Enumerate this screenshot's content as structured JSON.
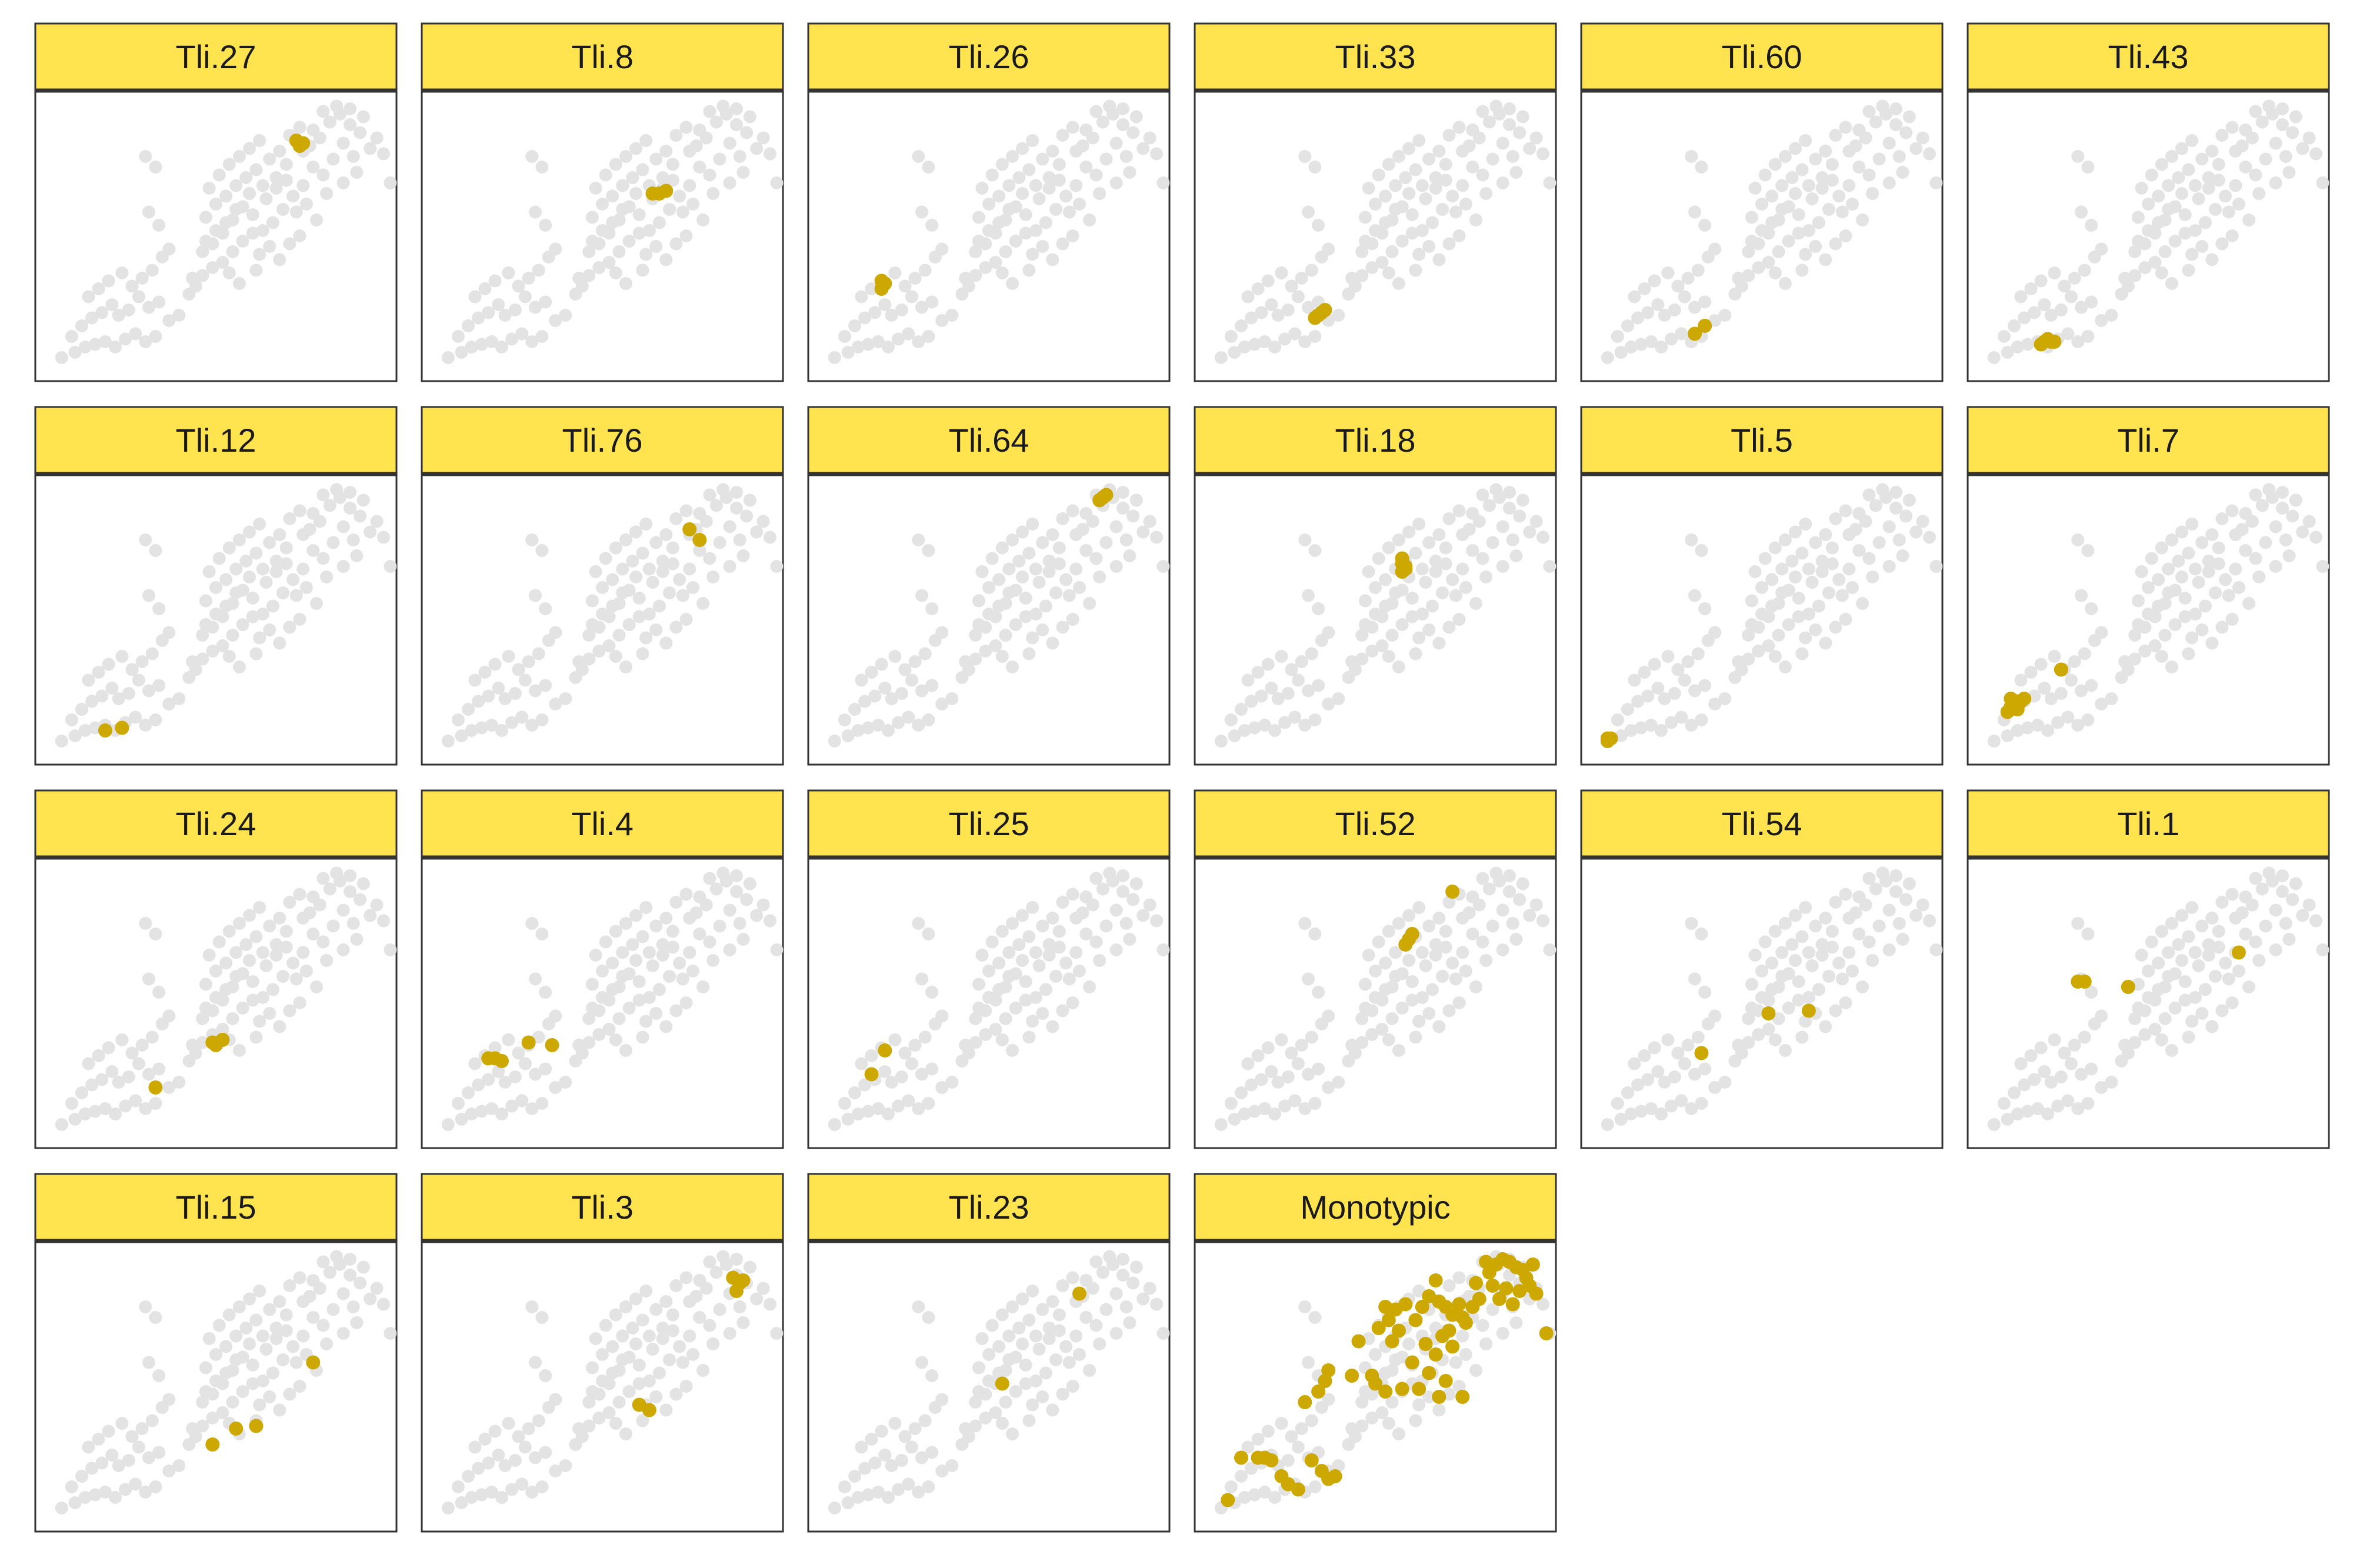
{
  "colors": {
    "background_point": "#E3E3E3",
    "highlight_point": "#CCA800",
    "strip_fill": "#FFE44F",
    "strip_border": "#333333",
    "panel_background": "#ffffff"
  },
  "chart_data": {
    "type": "scatter",
    "layout": "faceted-grid",
    "grid": false,
    "legend": "none",
    "xlim": [
      0,
      10
    ],
    "ylim": [
      0,
      10
    ],
    "background_points": [
      [
        0.4,
        0.4
      ],
      [
        0.8,
        0.6
      ],
      [
        1.1,
        0.8
      ],
      [
        1.4,
        0.9
      ],
      [
        1.7,
        1.0
      ],
      [
        2.0,
        0.8
      ],
      [
        2.3,
        1.1
      ],
      [
        2.6,
        1.3
      ],
      [
        2.9,
        1.0
      ],
      [
        3.2,
        1.2
      ],
      [
        0.7,
        1.2
      ],
      [
        1.0,
        1.6
      ],
      [
        1.3,
        1.9
      ],
      [
        1.6,
        2.1
      ],
      [
        1.9,
        2.4
      ],
      [
        2.1,
        2.0
      ],
      [
        2.4,
        2.2
      ],
      [
        2.7,
        2.7
      ],
      [
        3.0,
        2.3
      ],
      [
        3.3,
        2.5
      ],
      [
        3.6,
        1.8
      ],
      [
        3.9,
        2.0
      ],
      [
        4.2,
        2.8
      ],
      [
        4.4,
        3.1
      ],
      [
        1.2,
        2.7
      ],
      [
        1.5,
        3.0
      ],
      [
        1.8,
        3.3
      ],
      [
        2.2,
        3.6
      ],
      [
        2.5,
        3.1
      ],
      [
        2.8,
        3.4
      ],
      [
        3.1,
        3.7
      ],
      [
        3.4,
        4.2
      ],
      [
        3.6,
        4.5
      ],
      [
        3.3,
        5.4
      ],
      [
        3.0,
        5.9
      ],
      [
        2.9,
        8.0
      ],
      [
        3.2,
        7.6
      ],
      [
        4.6,
        3.5
      ],
      [
        4.9,
        3.8
      ],
      [
        5.2,
        4.0
      ],
      [
        5.5,
        4.4
      ],
      [
        5.8,
        4.8
      ],
      [
        6.1,
        5.1
      ],
      [
        6.3,
        4.3
      ],
      [
        6.6,
        4.6
      ],
      [
        4.7,
        5.7
      ],
      [
        5.0,
        6.2
      ],
      [
        5.3,
        6.5
      ],
      [
        5.6,
        6.9
      ],
      [
        5.9,
        7.2
      ],
      [
        6.2,
        7.5
      ],
      [
        6.5,
        6.4
      ],
      [
        6.8,
        6.8
      ],
      [
        7.1,
        7.1
      ],
      [
        7.4,
        5.9
      ],
      [
        7.7,
        6.2
      ],
      [
        8.0,
        5.6
      ],
      [
        4.8,
        6.8
      ],
      [
        5.1,
        7.3
      ],
      [
        5.4,
        7.7
      ],
      [
        5.7,
        8.0
      ],
      [
        6.0,
        8.3
      ],
      [
        6.3,
        8.6
      ],
      [
        6.6,
        7.9
      ],
      [
        6.9,
        8.2
      ],
      [
        7.2,
        8.8
      ],
      [
        7.5,
        9.1
      ],
      [
        7.8,
        8.4
      ],
      [
        8.1,
        8.7
      ],
      [
        8.4,
        9.3
      ],
      [
        8.7,
        9.6
      ],
      [
        9.0,
        9.2
      ],
      [
        9.3,
        8.9
      ],
      [
        9.1,
        8.0
      ],
      [
        8.8,
        8.5
      ],
      [
        8.5,
        7.9
      ],
      [
        8.2,
        7.3
      ],
      [
        7.9,
        7.6
      ],
      [
        7.6,
        6.9
      ],
      [
        7.3,
        6.5
      ],
      [
        7.0,
        6.0
      ],
      [
        6.7,
        5.5
      ],
      [
        6.4,
        5.2
      ],
      [
        6.1,
        5.8
      ],
      [
        5.8,
        6.1
      ],
      [
        5.5,
        5.6
      ],
      [
        5.2,
        5.1
      ],
      [
        4.9,
        4.7
      ],
      [
        4.6,
        4.4
      ],
      [
        8.2,
        9.7
      ],
      [
        8.6,
        9.9
      ],
      [
        9.0,
        9.8
      ],
      [
        9.4,
        9.5
      ],
      [
        9.6,
        8.3
      ],
      [
        9.8,
        8.7
      ],
      [
        10.0,
        8.1
      ],
      [
        10.2,
        7.0
      ],
      [
        9.2,
        7.4
      ],
      [
        8.8,
        7.0
      ],
      [
        8.3,
        6.6
      ],
      [
        7.5,
        5.0
      ],
      [
        7.2,
        4.7
      ],
      [
        6.9,
        4.1
      ],
      [
        6.2,
        3.7
      ],
      [
        5.7,
        3.2
      ],
      [
        5.4,
        3.6
      ],
      [
        4.3,
        3.4
      ],
      [
        7.9,
        9.0
      ],
      [
        7.6,
        8.2
      ],
      [
        7.1,
        7.7
      ],
      [
        6.8,
        7.2
      ],
      [
        6.4,
        6.9
      ],
      [
        6.0,
        6.6
      ],
      [
        5.6,
        6.0
      ],
      [
        5.3,
        5.5
      ],
      [
        5.0,
        5.2
      ],
      [
        4.7,
        4.8
      ]
    ],
    "facets": [
      {
        "name": "Tli.27",
        "points": [
          [
            7.4,
            8.6
          ],
          [
            7.6,
            8.5
          ],
          [
            7.5,
            8.4
          ]
        ]
      },
      {
        "name": "Tli.8",
        "points": [
          [
            6.5,
            6.6
          ],
          [
            6.9,
            6.7
          ],
          [
            6.7,
            6.6
          ]
        ]
      },
      {
        "name": "Tli.26",
        "points": [
          [
            1.8,
            3.0
          ],
          [
            1.9,
            3.2
          ],
          [
            1.8,
            3.3
          ]
        ]
      },
      {
        "name": "Tli.33",
        "points": [
          [
            3.2,
            1.9
          ],
          [
            3.5,
            2.2
          ],
          [
            3.4,
            2.1
          ],
          [
            3.3,
            2.0
          ]
        ]
      },
      {
        "name": "Tli.60",
        "points": [
          [
            3.0,
            1.3
          ],
          [
            3.3,
            1.6
          ]
        ]
      },
      {
        "name": "Tli.43",
        "points": [
          [
            1.8,
            0.9
          ],
          [
            2.1,
            1.0
          ],
          [
            2.0,
            1.1
          ],
          [
            1.9,
            1.0
          ],
          [
            2.2,
            1.0
          ]
        ]
      },
      {
        "name": "Tli.12",
        "points": [
          [
            1.7,
            0.8
          ],
          [
            2.2,
            0.9
          ]
        ]
      },
      {
        "name": "Tli.76",
        "points": [
          [
            7.6,
            8.4
          ],
          [
            7.9,
            8.0
          ]
        ]
      },
      {
        "name": "Tli.64",
        "points": [
          [
            8.3,
            9.5
          ],
          [
            8.5,
            9.7
          ],
          [
            8.4,
            9.6
          ]
        ]
      },
      {
        "name": "Tli.18",
        "points": [
          [
            5.8,
            6.8
          ],
          [
            5.9,
            7.0
          ],
          [
            5.8,
            7.1
          ],
          [
            5.9,
            6.9
          ],
          [
            5.8,
            7.3
          ]
        ]
      },
      {
        "name": "Tli.5",
        "points": [
          [
            0.4,
            0.4
          ],
          [
            0.5,
            0.5
          ],
          [
            0.4,
            0.5
          ]
        ]
      },
      {
        "name": "Tli.7",
        "points": [
          [
            0.8,
            1.5
          ],
          [
            1.0,
            1.8
          ],
          [
            1.2,
            1.9
          ],
          [
            0.9,
            1.7
          ],
          [
            1.1,
            1.6
          ],
          [
            1.3,
            2.0
          ],
          [
            0.9,
            2.0
          ],
          [
            1.1,
            1.9
          ],
          [
            2.4,
            3.1
          ]
        ]
      },
      {
        "name": "Tli.24",
        "points": [
          [
            4.9,
            3.5
          ],
          [
            5.2,
            3.6
          ],
          [
            5.0,
            3.4
          ],
          [
            3.2,
            1.8
          ]
        ]
      },
      {
        "name": "Tli.4",
        "points": [
          [
            1.6,
            2.9
          ],
          [
            2.0,
            2.8
          ],
          [
            2.8,
            3.5
          ],
          [
            3.5,
            3.4
          ],
          [
            1.8,
            2.9
          ]
        ]
      },
      {
        "name": "Tli.25",
        "points": [
          [
            1.5,
            2.3
          ],
          [
            1.9,
            3.2
          ]
        ]
      },
      {
        "name": "Tli.52",
        "points": [
          [
            6.0,
            7.4
          ],
          [
            5.9,
            7.2
          ],
          [
            7.3,
            9.2
          ],
          [
            6.1,
            7.6
          ]
        ]
      },
      {
        "name": "Tli.54",
        "points": [
          [
            3.2,
            3.1
          ],
          [
            5.2,
            4.6
          ],
          [
            6.4,
            4.7
          ]
        ]
      },
      {
        "name": "Tli.1",
        "points": [
          [
            2.9,
            5.8
          ],
          [
            3.1,
            5.8
          ],
          [
            4.4,
            5.6
          ],
          [
            7.7,
            6.9
          ]
        ]
      },
      {
        "name": "Tli.15",
        "points": [
          [
            4.9,
            2.8
          ],
          [
            5.6,
            3.4
          ],
          [
            6.2,
            3.5
          ],
          [
            7.9,
            5.9
          ]
        ]
      },
      {
        "name": "Tli.3",
        "points": [
          [
            6.1,
            4.3
          ],
          [
            6.4,
            4.1
          ],
          [
            9.0,
            8.6
          ],
          [
            9.2,
            9.0
          ],
          [
            8.9,
            9.1
          ],
          [
            9.1,
            8.9
          ]
        ]
      },
      {
        "name": "Tli.23",
        "points": [
          [
            5.4,
            5.1
          ],
          [
            7.7,
            8.5
          ]
        ]
      },
      {
        "name": "Monotypic",
        "points": [
          [
            0.6,
            0.7
          ],
          [
            1.0,
            2.3
          ],
          [
            1.5,
            2.3
          ],
          [
            1.7,
            2.3
          ],
          [
            1.9,
            2.2
          ],
          [
            2.2,
            1.6
          ],
          [
            2.4,
            1.3
          ],
          [
            2.7,
            1.1
          ],
          [
            3.1,
            2.2
          ],
          [
            3.4,
            1.8
          ],
          [
            3.6,
            1.5
          ],
          [
            3.8,
            1.6
          ],
          [
            2.9,
            4.4
          ],
          [
            3.3,
            4.8
          ],
          [
            3.5,
            5.2
          ],
          [
            3.6,
            5.6
          ],
          [
            4.3,
            5.4
          ],
          [
            4.5,
            6.7
          ],
          [
            4.9,
            5.4
          ],
          [
            5.0,
            5.1
          ],
          [
            5.3,
            4.8
          ],
          [
            5.1,
            7.2
          ],
          [
            5.4,
            7.5
          ],
          [
            5.3,
            8.0
          ],
          [
            5.6,
            7.9
          ],
          [
            5.9,
            8.1
          ],
          [
            5.5,
            6.7
          ],
          [
            5.7,
            7.1
          ],
          [
            6.2,
            7.5
          ],
          [
            6.4,
            8.0
          ],
          [
            6.6,
            8.4
          ],
          [
            6.9,
            8.2
          ],
          [
            7.1,
            8.0
          ],
          [
            7.3,
            7.7
          ],
          [
            7.5,
            8.1
          ],
          [
            7.7,
            7.4
          ],
          [
            6.5,
            6.6
          ],
          [
            6.8,
            6.2
          ],
          [
            7.0,
            6.9
          ],
          [
            7.2,
            7.1
          ],
          [
            6.8,
            9.0
          ],
          [
            7.3,
            6.5
          ],
          [
            7.6,
            7.6
          ],
          [
            7.9,
            8.0
          ],
          [
            8.1,
            8.3
          ],
          [
            6.1,
            5.9
          ],
          [
            6.6,
            5.5
          ],
          [
            7.1,
            5.2
          ],
          [
            6.3,
            4.9
          ],
          [
            6.9,
            4.6
          ],
          [
            7.6,
            4.6
          ],
          [
            5.8,
            4.9
          ],
          [
            8.4,
            9.3
          ],
          [
            8.6,
            9.6
          ],
          [
            8.8,
            9.8
          ],
          [
            9.0,
            9.7
          ],
          [
            9.2,
            9.5
          ],
          [
            9.4,
            9.4
          ],
          [
            8.9,
            8.7
          ],
          [
            8.7,
            8.3
          ],
          [
            9.3,
            8.6
          ],
          [
            9.6,
            8.8
          ],
          [
            9.8,
            8.5
          ],
          [
            9.5,
            9.1
          ],
          [
            10.1,
            7.0
          ],
          [
            8.3,
            9.7
          ],
          [
            9.7,
            9.6
          ],
          [
            8.5,
            8.8
          ],
          [
            9.1,
            8.1
          ],
          [
            8.0,
            8.9
          ]
        ]
      }
    ]
  }
}
